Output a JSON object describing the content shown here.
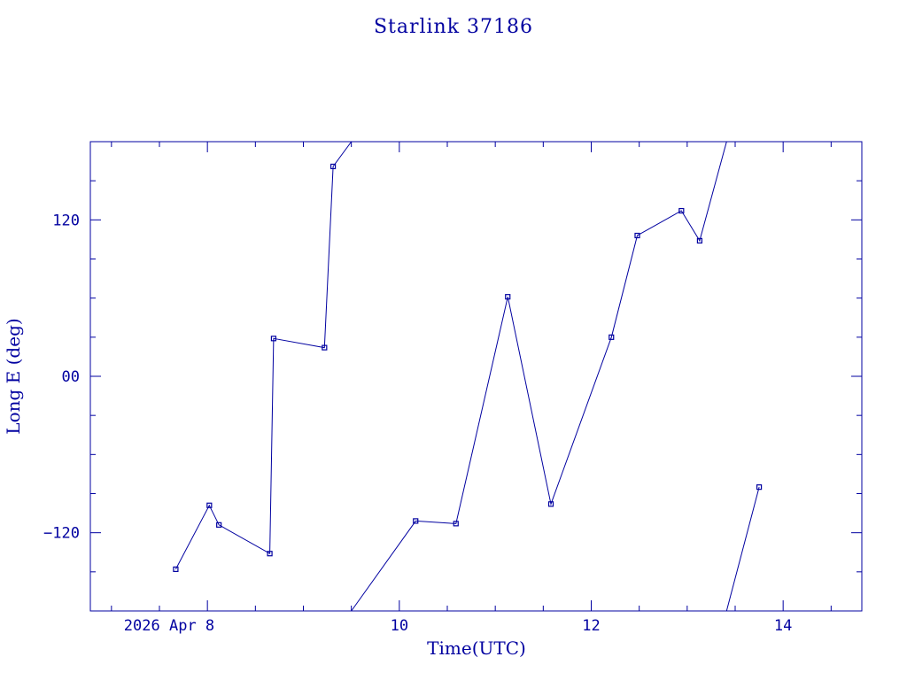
{
  "chart_data": {
    "type": "line",
    "title": "Starlink 37186",
    "xlabel": "Time(UTC)",
    "ylabel": "Long E (deg)",
    "xlim": [
      6.78,
      14.82
    ],
    "ylim": [
      -180,
      180
    ],
    "x_ticks": [
      {
        "value": 8,
        "label": "2026 Apr  8"
      },
      {
        "value": 10,
        "label": "10"
      },
      {
        "value": 12,
        "label": "12"
      },
      {
        "value": 14,
        "label": "14"
      }
    ],
    "y_ticks": [
      {
        "value": 120,
        "label": "120"
      },
      {
        "value": 0,
        "label": "00"
      },
      {
        "value": -120,
        "label": "−120"
      }
    ],
    "x_minor_step": 0.5,
    "y_minor_step": 30,
    "grid": false,
    "legend": "none",
    "color": "#0000a0",
    "series": [
      {
        "points": [
          [
            7.67,
            -148
          ],
          [
            8.02,
            -99
          ],
          [
            8.12,
            -114
          ],
          [
            8.65,
            -136
          ],
          [
            8.69,
            29
          ],
          [
            9.22,
            22
          ],
          [
            9.31,
            161
          ],
          [
            9.5,
            180
          ]
        ]
      },
      {
        "points": [
          [
            9.5,
            -180
          ],
          [
            10.17,
            -111
          ],
          [
            10.59,
            -113
          ],
          [
            11.13,
            61
          ],
          [
            11.58,
            -98
          ],
          [
            12.21,
            30
          ],
          [
            12.48,
            108
          ],
          [
            12.94,
            127
          ],
          [
            13.13,
            104
          ],
          [
            13.41,
            180
          ]
        ]
      },
      {
        "points": [
          [
            13.41,
            -180
          ],
          [
            13.75,
            -85
          ]
        ]
      }
    ],
    "markers": [
      [
        7.67,
        -148
      ],
      [
        8.02,
        -99
      ],
      [
        8.12,
        -114
      ],
      [
        8.65,
        -136
      ],
      [
        8.69,
        29
      ],
      [
        9.22,
        22
      ],
      [
        9.31,
        161
      ],
      [
        10.17,
        -111
      ],
      [
        10.59,
        -113
      ],
      [
        11.13,
        61
      ],
      [
        11.58,
        -98
      ],
      [
        12.21,
        30
      ],
      [
        12.48,
        108
      ],
      [
        12.94,
        127
      ],
      [
        13.13,
        104
      ],
      [
        13.75,
        -85
      ]
    ]
  }
}
